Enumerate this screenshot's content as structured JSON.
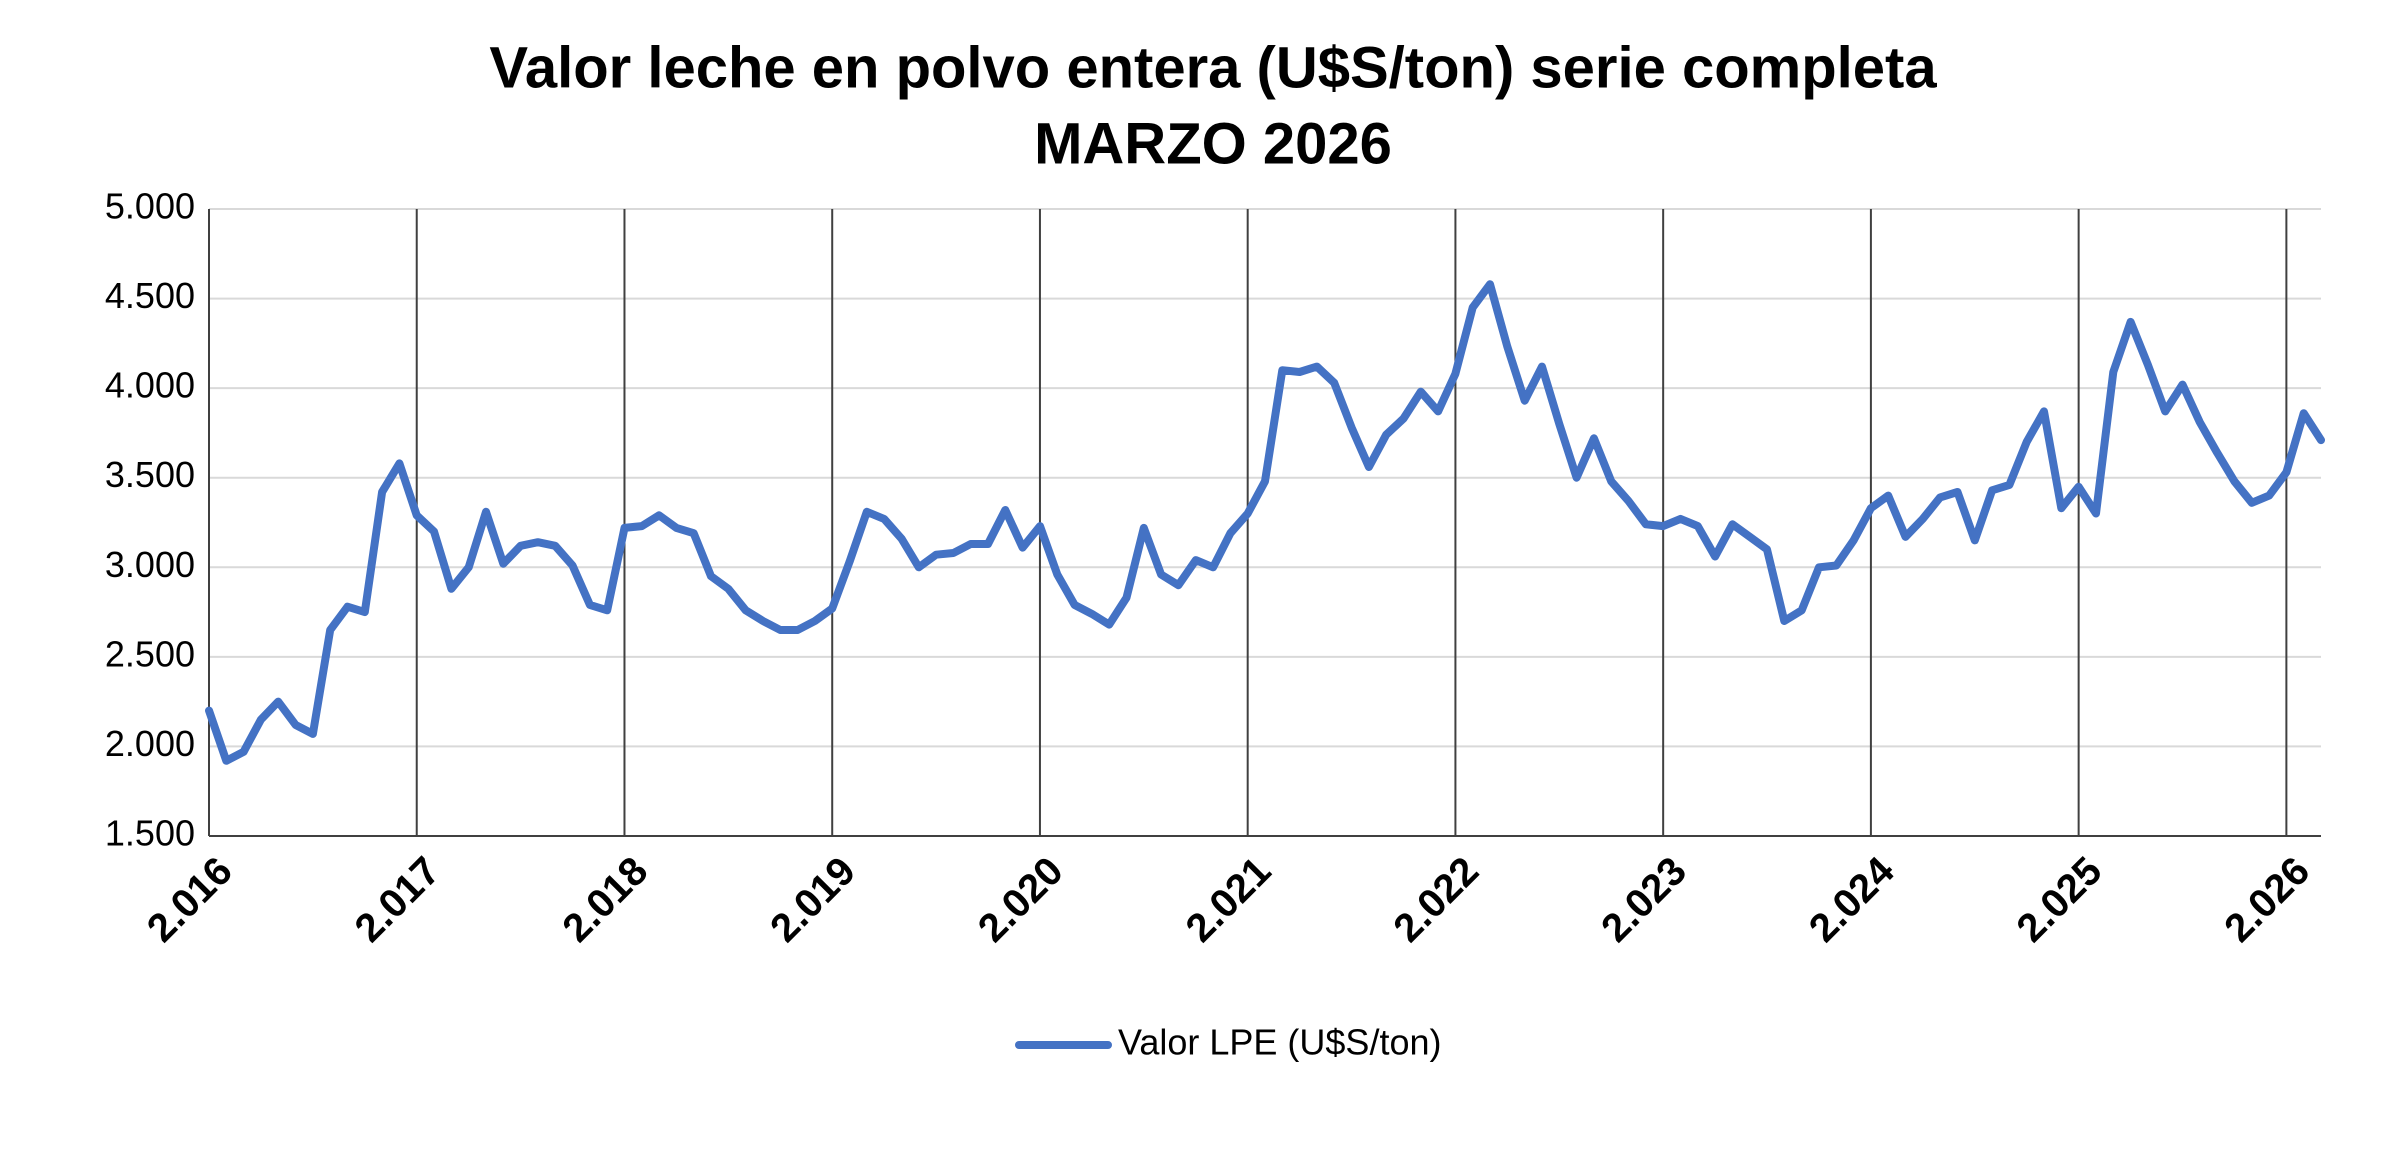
{
  "chart_data": {
    "type": "line",
    "title": "Valor leche en polvo entera (U$S/ton) serie completa",
    "subtitle": "MARZO 2026",
    "categories": [
      "2.016",
      null,
      null,
      null,
      null,
      null,
      null,
      null,
      null,
      null,
      null,
      null,
      "2.017",
      null,
      null,
      null,
      null,
      null,
      null,
      null,
      null,
      null,
      null,
      null,
      "2.018",
      null,
      null,
      null,
      null,
      null,
      null,
      null,
      null,
      null,
      null,
      null,
      "2.019",
      null,
      null,
      null,
      null,
      null,
      null,
      null,
      null,
      null,
      null,
      null,
      "2.020",
      null,
      null,
      null,
      null,
      null,
      null,
      null,
      null,
      null,
      null,
      null,
      "2.021",
      null,
      null,
      null,
      null,
      null,
      null,
      null,
      null,
      null,
      null,
      null,
      "2.022",
      null,
      null,
      null,
      null,
      null,
      null,
      null,
      null,
      null,
      null,
      null,
      "2.023",
      null,
      null,
      null,
      null,
      null,
      null,
      null,
      null,
      null,
      null,
      null,
      "2.024",
      null,
      null,
      null,
      null,
      null,
      null,
      null,
      null,
      null,
      null,
      null,
      "2.025",
      null,
      null,
      null,
      null,
      null,
      null,
      null,
      null,
      null,
      null,
      null,
      "2.026",
      null,
      null
    ],
    "series": [
      {
        "name": "Valor LPE (U$S/ton)",
        "color": "#4472c4",
        "values": [
          2200,
          1920,
          1970,
          2150,
          2250,
          2120,
          2070,
          2650,
          2780,
          2750,
          3420,
          3580,
          3290,
          3200,
          2880,
          3000,
          3310,
          3020,
          3120,
          3140,
          3120,
          3010,
          2790,
          2760,
          3220,
          3230,
          3290,
          3220,
          3190,
          2950,
          2880,
          2760,
          2700,
          2650,
          2650,
          2700,
          2770,
          3030,
          3310,
          3270,
          3160,
          3000,
          3070,
          3080,
          3130,
          3130,
          3320,
          3110,
          3230,
          2960,
          2790,
          2740,
          2680,
          2830,
          3220,
          2960,
          2900,
          3040,
          3000,
          3190,
          3300,
          3480,
          4100,
          4090,
          4120,
          4030,
          3780,
          3560,
          3740,
          3830,
          3980,
          3870,
          4080,
          4450,
          4580,
          4230,
          3930,
          4120,
          3800,
          3500,
          3720,
          3480,
          3370,
          3240,
          3230,
          3270,
          3230,
          3060,
          3240,
          3170,
          3100,
          2700,
          2760,
          3000,
          3010,
          3150,
          3330,
          3400,
          3170,
          3270,
          3390,
          3420,
          3150,
          3430,
          3460,
          3700,
          3870,
          3330,
          3450,
          3300,
          4090,
          4370,
          4130,
          3870,
          4020,
          3810,
          3640,
          3480,
          3360,
          3400,
          3530,
          3860,
          3710
        ]
      }
    ],
    "ylim": [
      1500,
      5000
    ],
    "yticks": [
      {
        "value": 1500,
        "label": "1.500"
      },
      {
        "value": 2000,
        "label": "2.000"
      },
      {
        "value": 2500,
        "label": "2.500"
      },
      {
        "value": 3000,
        "label": "3.000"
      },
      {
        "value": 3500,
        "label": "3.500"
      },
      {
        "value": 4000,
        "label": "4.000"
      },
      {
        "value": 4500,
        "label": "4.500"
      },
      {
        "value": 5000,
        "label": "5.000"
      }
    ],
    "grid": true,
    "legend": "bottom"
  }
}
